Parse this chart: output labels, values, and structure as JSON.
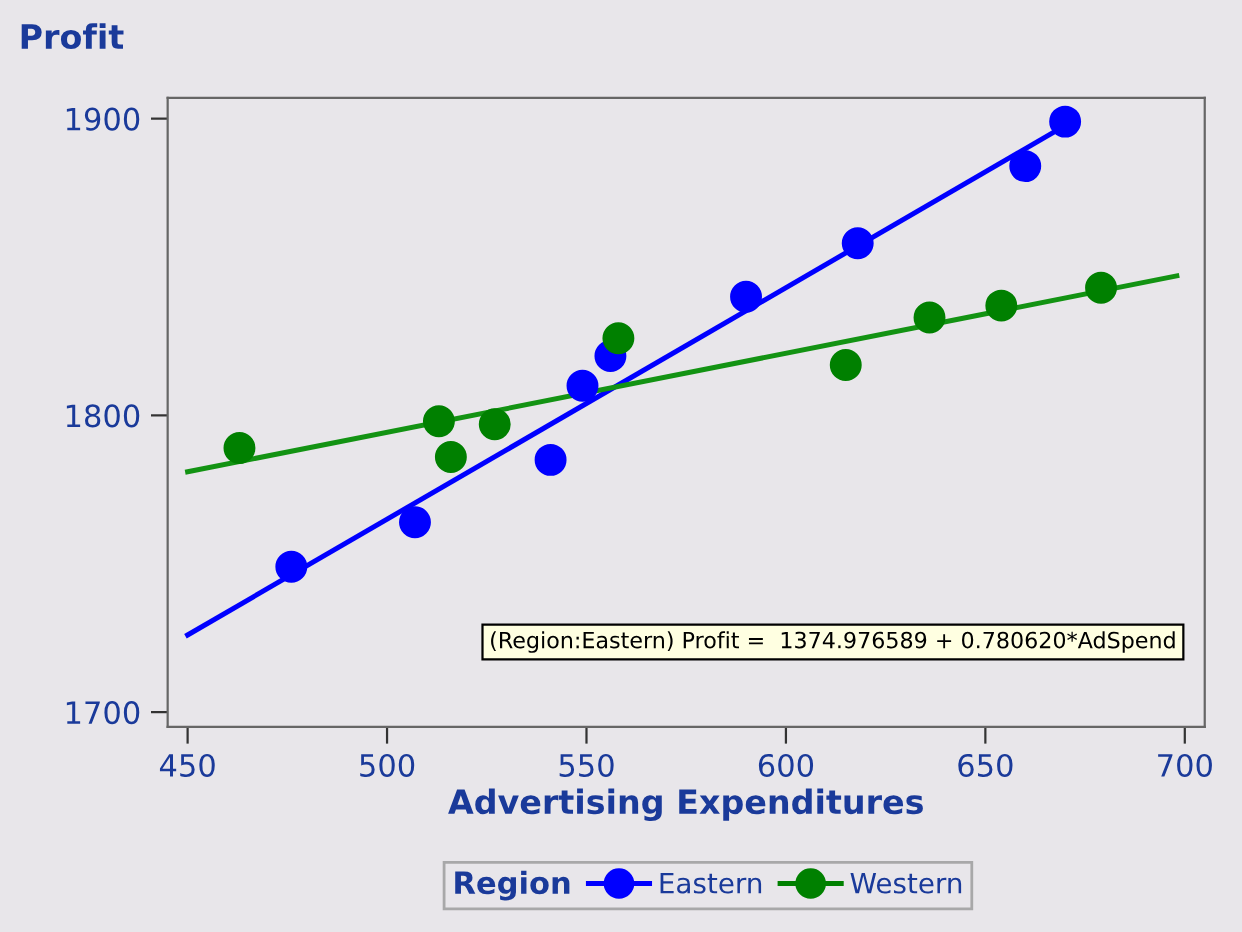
{
  "chart_data": {
    "type": "scatter",
    "xlabel": "Advertising Expenditures",
    "ylabel": "Profit",
    "legend_title": "Region",
    "legend": "bottom",
    "marker": "circle",
    "grid": false,
    "xlim": [
      445,
      705
    ],
    "ylim": [
      1695,
      1907
    ],
    "xticks": [
      450,
      500,
      550,
      600,
      650,
      700
    ],
    "yticks": [
      1700,
      1800,
      1900
    ],
    "annotations": [
      "(Region:Eastern) Profit =  1374.976589 + 0.780620*AdSpend"
    ],
    "series": [
      {
        "name": "Eastern",
        "color": "#0000ff",
        "x": [
          476,
          507,
          541,
          549,
          556,
          590,
          618,
          660,
          670
        ],
        "values": [
          1749,
          1764,
          1785,
          1810,
          1820,
          1840,
          1858,
          1884,
          1899
        ]
      },
      {
        "name": "Western",
        "color": "#008000",
        "x": [
          463,
          513,
          516,
          527,
          558,
          615,
          636,
          654,
          679
        ],
        "values": [
          1789,
          1798,
          1786,
          1797,
          1826,
          1817,
          1833,
          1837,
          1843
        ]
      },
      {
        "type": "line",
        "marker": "none",
        "color": "#0000ff",
        "x": [
          450,
          673
        ],
        "values": [
          1726,
          1900
        ]
      },
      {
        "type": "line",
        "marker": "none",
        "color": "#139313",
        "x": [
          450,
          698
        ],
        "values": [
          1781,
          1847
        ]
      }
    ]
  }
}
